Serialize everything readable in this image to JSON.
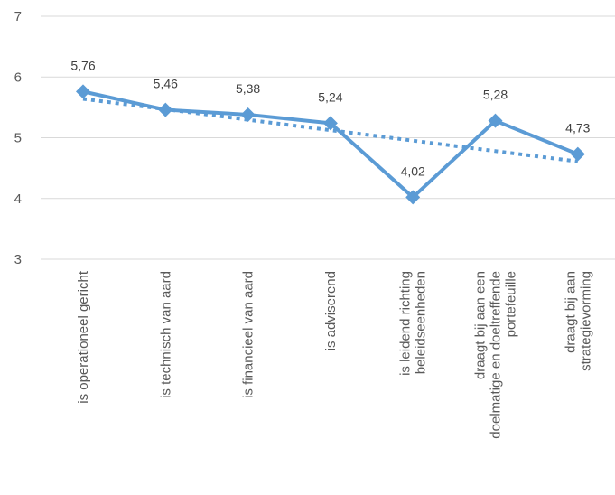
{
  "chart_data": {
    "type": "line",
    "categories": [
      [
        "is operationeel gericht"
      ],
      [
        "is technisch van aard"
      ],
      [
        "is financieel van aard"
      ],
      [
        "is adviserend"
      ],
      [
        "is leidend richting",
        "beleidseenheden"
      ],
      [
        "draagt bij aan een",
        "doelmatige en doeltreffende",
        "portefeuille"
      ],
      [
        "draagt bij aan",
        "strategievorming"
      ]
    ],
    "series": [
      {
        "values": [
          5.76,
          5.46,
          5.38,
          5.24,
          4.02,
          5.28,
          4.73
        ],
        "labels": [
          "5,76",
          "5,46",
          "5,38",
          "5,24",
          "4,02",
          "5,28",
          "4,73"
        ],
        "color": "#5B9BD5",
        "marker": "diamond"
      }
    ],
    "trendline": {
      "type": "linear",
      "style": "dotted",
      "color": "#5B9BD5"
    },
    "ylim": [
      3,
      7
    ],
    "yticks": [
      "3",
      "4",
      "5",
      "6",
      "7"
    ],
    "grid": true
  }
}
